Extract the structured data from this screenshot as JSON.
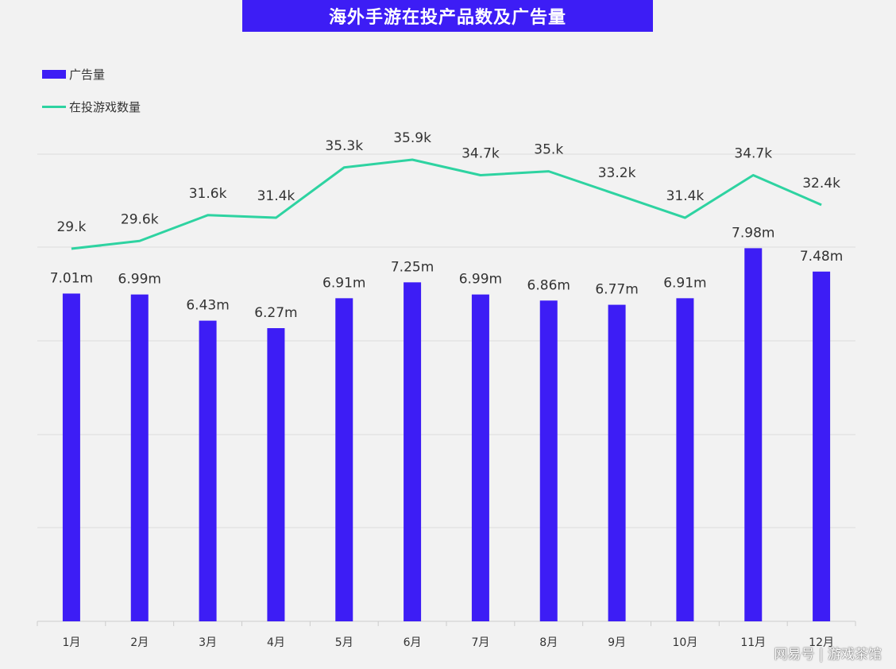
{
  "chart_data": {
    "type": "bar+line",
    "title": "海外手游在投产品数及广告量",
    "categories": [
      "1月",
      "2月",
      "3月",
      "4月",
      "5月",
      "6月",
      "7月",
      "8月",
      "9月",
      "10月",
      "11月",
      "12月"
    ],
    "series": [
      {
        "name": "广告量",
        "type": "bar",
        "values": [
          7.01,
          6.99,
          6.43,
          6.27,
          6.91,
          7.25,
          6.99,
          6.86,
          6.77,
          6.91,
          7.98,
          7.48
        ],
        "labels": [
          "7.01m",
          "6.99m",
          "6.43m",
          "6.27m",
          "6.91m",
          "7.25m",
          "6.99m",
          "6.86m",
          "6.77m",
          "6.91m",
          "7.98m",
          "7.48m"
        ],
        "color": "#3d1df5",
        "ylim": [
          0,
          8
        ]
      },
      {
        "name": "在投游戏数量",
        "type": "line",
        "values": [
          29.0,
          29.6,
          31.6,
          31.4,
          35.3,
          35.9,
          34.7,
          35.0,
          33.2,
          31.4,
          34.7,
          32.4
        ],
        "labels": [
          "29.k",
          "29.6k",
          "31.6k",
          "31.4k",
          "35.3k",
          "35.9k",
          "34.7k",
          "35.k",
          "33.2k",
          "31.4k",
          "34.7k",
          "32.4k"
        ],
        "color": "#2ed3a1"
      }
    ],
    "grid": true,
    "legend_position": "top-left"
  },
  "watermark": "网易号 | 游戏茶馆"
}
